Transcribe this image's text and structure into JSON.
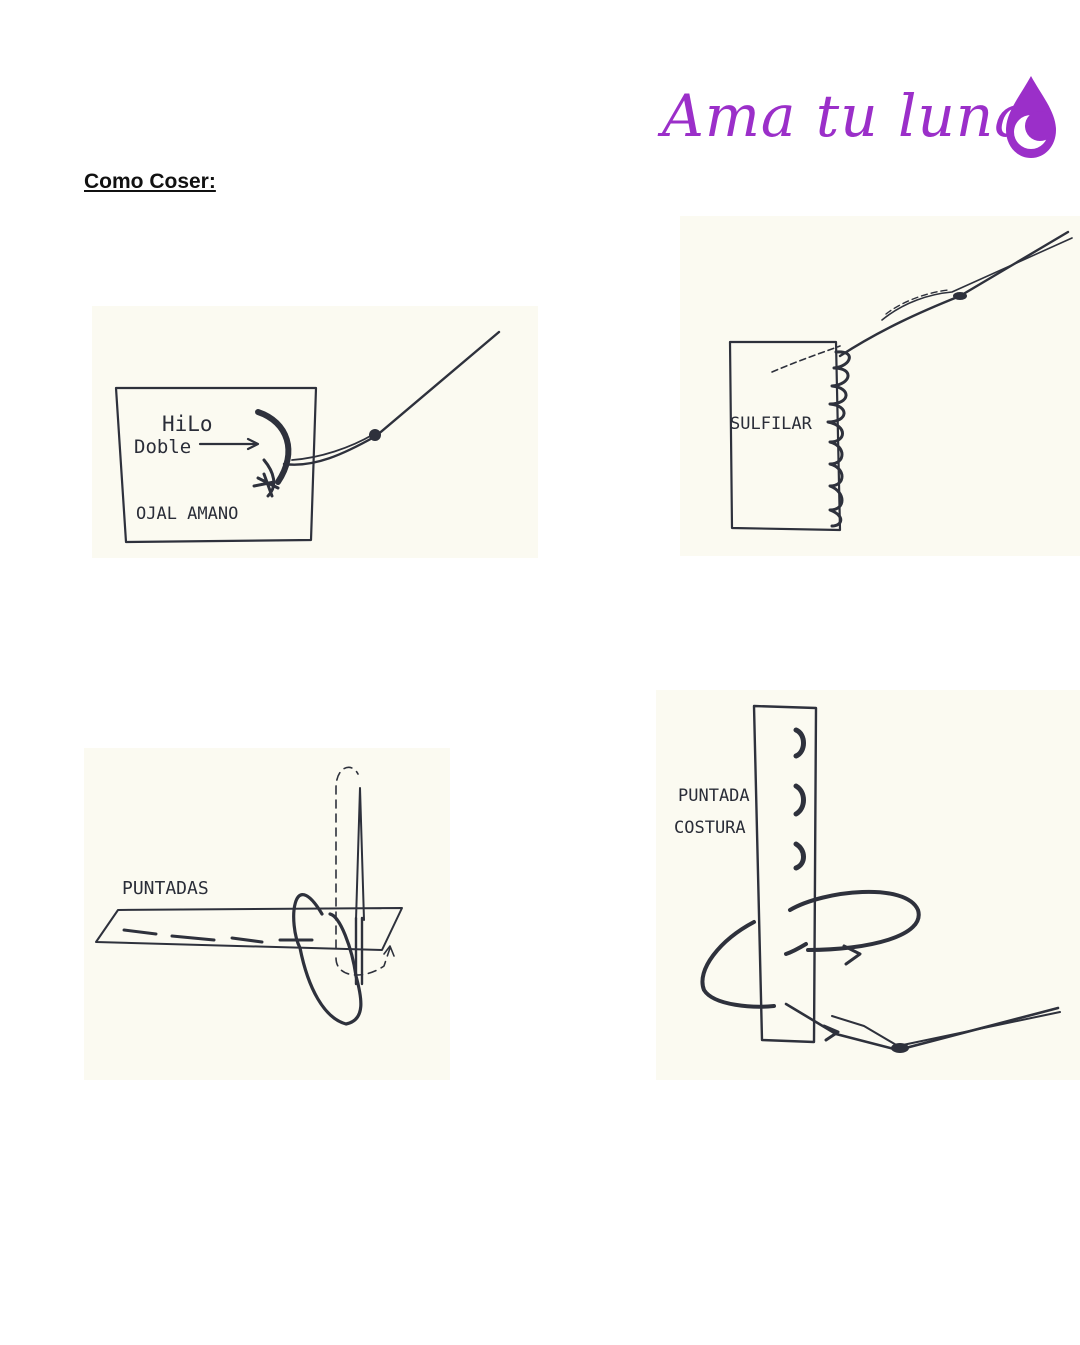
{
  "header": {
    "logo_text": "Ama tu luna",
    "logo_icon": "drop-moon-icon",
    "title": "Como Coser:"
  },
  "colors": {
    "brand": "#9b2fc9",
    "paper": "#fbfaf1",
    "ink": "#2e313c",
    "title": "#111111"
  },
  "illustrations": [
    {
      "id": "ojal",
      "labels": [
        "HiLo",
        "Doble",
        "OJAL AMANO"
      ]
    },
    {
      "id": "sulfilar",
      "labels": [
        "SULFILAR"
      ]
    },
    {
      "id": "puntadas",
      "labels": [
        "PUNTADAS"
      ]
    },
    {
      "id": "costura",
      "labels": [
        "PUNTADA",
        "COSTURA"
      ]
    }
  ]
}
